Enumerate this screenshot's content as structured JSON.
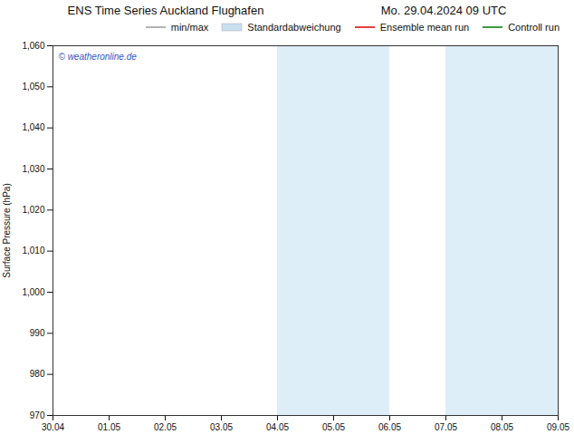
{
  "chart_data": {
    "type": "line",
    "title": "ENS Time Series Auckland Flughafen",
    "subtitle": "Mo. 29.04.2024 09 UTC",
    "y_label": "Surface Pressure (hPa)",
    "categories": [
      "30.04",
      "01.05",
      "02.05",
      "03.05",
      "04.05",
      "05.05",
      "06.05",
      "07.05",
      "08.05",
      "09.05"
    ],
    "series": [
      {
        "name": "min/max",
        "color": "#999999",
        "type": "line",
        "values": [
          null,
          null,
          null,
          null,
          null,
          null,
          null,
          null,
          null,
          null
        ]
      },
      {
        "name": "Standardabweichung",
        "color": "#c8dff0",
        "type": "area",
        "values": [
          null,
          null,
          null,
          null,
          null,
          null,
          null,
          null,
          null,
          null
        ]
      },
      {
        "name": "Ensemble mean run",
        "color": "#dd0000",
        "type": "line",
        "values": [
          null,
          null,
          null,
          null,
          null,
          null,
          null,
          null,
          null,
          null
        ]
      },
      {
        "name": "Controll run",
        "color": "#007700",
        "type": "line",
        "values": [
          null,
          null,
          null,
          null,
          null,
          null,
          null,
          null,
          null,
          null
        ]
      }
    ],
    "shaded_regions": [
      {
        "x_start": "04.05",
        "x_end": "06.05",
        "color": "#ddeef8"
      },
      {
        "x_start": "07.05",
        "x_end": "09.05",
        "color": "#ddeef8"
      }
    ],
    "annotations": [
      {
        "text": "© weatheronline.de",
        "color": "#3355cc"
      }
    ],
    "ylim": [
      970,
      1060
    ],
    "yticks": [
      970,
      980,
      990,
      1000,
      1010,
      1020,
      1030,
      1040,
      1050,
      1060
    ],
    "grid": false,
    "legend": "upper right"
  }
}
